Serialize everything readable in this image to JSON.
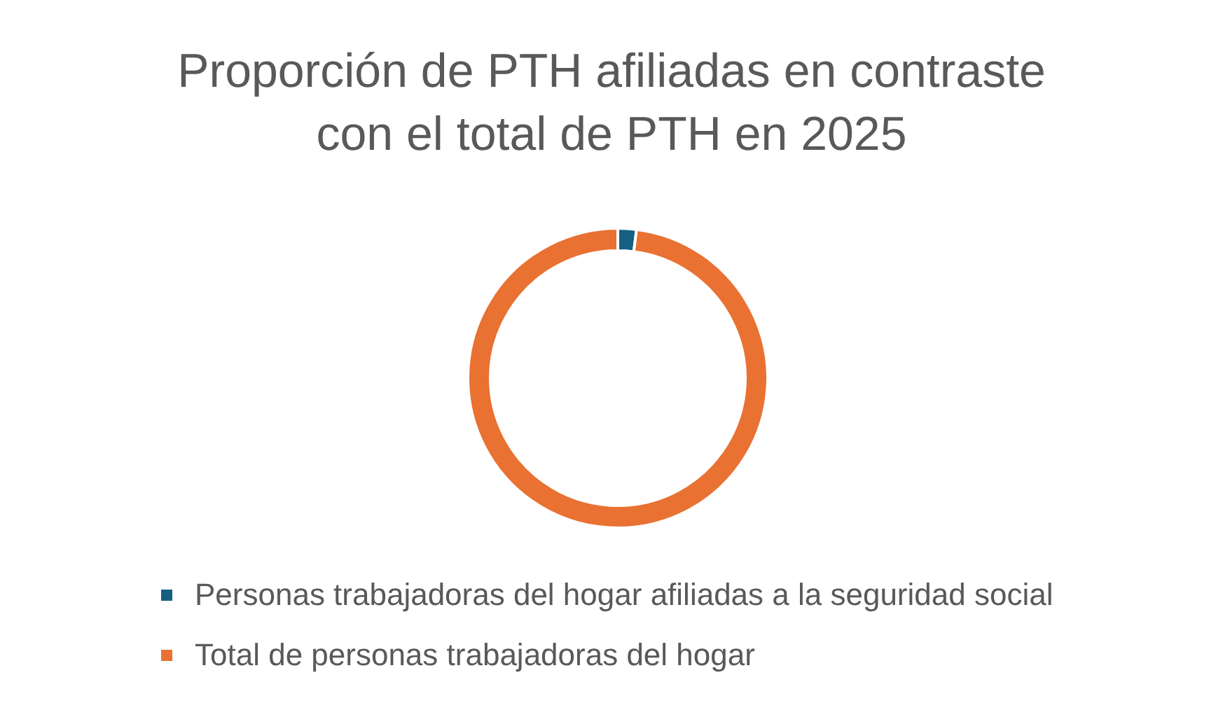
{
  "chart_data": {
    "type": "donut",
    "title": "Proporción de PTH afiliadas en contraste con el total de PTH en 2025",
    "categories": [
      "Personas trabajadoras del hogar afiliadas a la seguridad social",
      "Total de personas trabajadoras del hogar"
    ],
    "values": [
      2,
      98
    ],
    "colors": [
      "#156082",
      "#e97132"
    ],
    "legend": "bottom"
  }
}
